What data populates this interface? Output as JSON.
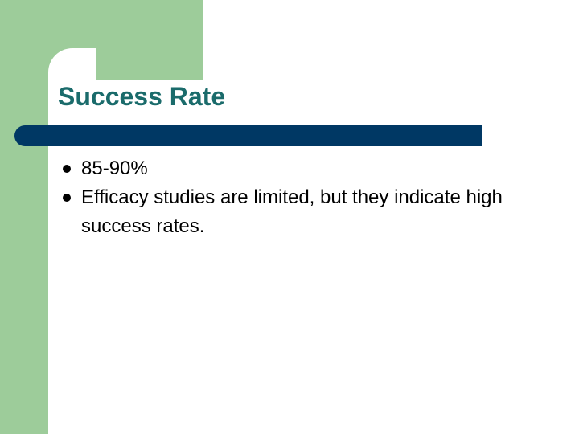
{
  "slide": {
    "title": "Success Rate",
    "bullets": [
      "85-90%",
      "Efficacy studies are limited, but they indicate high success rates."
    ]
  }
}
